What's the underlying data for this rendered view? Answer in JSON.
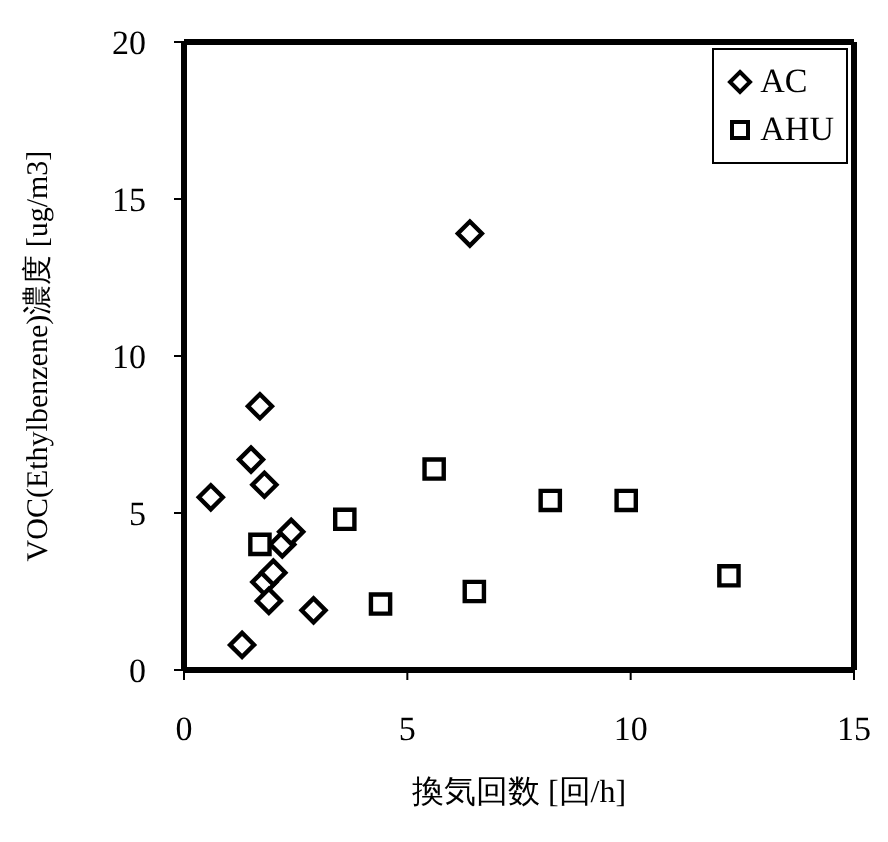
{
  "chart_data": {
    "type": "scatter",
    "xlabel": "換気回数 [回/h]",
    "ylabel": "VOC(Ethylbenzene)濃度 [ug/m3]",
    "xlim": [
      0,
      15
    ],
    "xticks": [
      0,
      5,
      10,
      15
    ],
    "ylim": [
      0,
      20
    ],
    "yticks": [
      0,
      5,
      10,
      15,
      20
    ],
    "legend": "top right",
    "series": [
      {
        "name": "AC",
        "color": "#000000",
        "marker": "diamond",
        "x": [
          0.6,
          1.3,
          1.5,
          1.7,
          1.8,
          1.8,
          1.9,
          2.0,
          2.2,
          2.4,
          2.9,
          6.4
        ],
        "values": [
          5.5,
          0.8,
          6.7,
          8.4,
          5.9,
          2.8,
          2.2,
          3.1,
          4.0,
          4.4,
          1.9,
          13.9
        ]
      },
      {
        "name": "AHU",
        "color": "#000000",
        "marker": "square",
        "x": [
          1.7,
          3.6,
          4.4,
          5.6,
          6.5,
          8.2,
          9.9,
          12.2
        ],
        "values": [
          4.0,
          4.8,
          2.1,
          6.4,
          2.5,
          5.4,
          5.4,
          3.0
        ]
      }
    ]
  }
}
